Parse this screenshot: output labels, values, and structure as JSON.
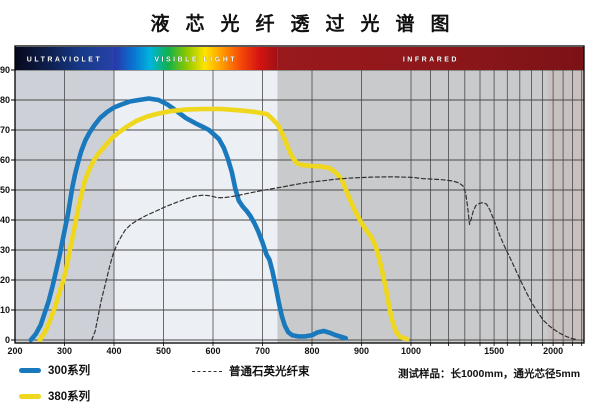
{
  "title": "液芯光纤透过光谱图",
  "colors": {
    "series_300": "#1a79bd",
    "series_380": "#eed71c",
    "series_quartz": "#333333",
    "grid": "#4a4a4a",
    "border": "#000000",
    "band_text": "#ffffff",
    "axis_text": "#111111",
    "right_tint": "#c79b90"
  },
  "spectrum_band": {
    "regions": [
      {
        "label": "ULTRAVIOLET",
        "from_nm": 200,
        "to_nm": 400,
        "band_stops": [
          "#07081c",
          "#0e1f4e",
          "#173a8a",
          "#2742a8"
        ],
        "plot_color": "#cdd1d7"
      },
      {
        "label": "VISIBLE LIGHT",
        "from_nm": 400,
        "to_nm": 730,
        "band_stops": [
          "#2b35a8",
          "#0b6fd0",
          "#00b5dd",
          "#12b14b",
          "#8cc800",
          "#ffe400",
          "#ff9700",
          "#f54708",
          "#d51410",
          "#a01015"
        ],
        "plot_color": "#eceff4"
      },
      {
        "label": "INFRARED",
        "from_nm": 730,
        "to_nm": 2330,
        "band_stops": [
          "#9a191d",
          "#8e171b",
          "#7c1216"
        ],
        "plot_color": "#c9cacb"
      }
    ]
  },
  "chart_data": {
    "type": "line",
    "title": "液芯光纤透过光谱图",
    "x_axis": {
      "ticks": [
        200,
        300,
        400,
        500,
        600,
        700,
        800,
        900,
        1000,
        1500,
        2000
      ],
      "gridline_step_nm": 100,
      "min_nm": 200,
      "max_nm": 2330,
      "scale": "linear 200-1000 nm, logarithmic beyond 1000 nm"
    },
    "y_axis": {
      "ticks": [
        0,
        10,
        20,
        30,
        40,
        50,
        60,
        70,
        80,
        90
      ],
      "min": 0,
      "max": 95
    },
    "grid": true,
    "series": [
      {
        "name": "300系列",
        "color": "#1a79bd",
        "style": "solid",
        "width": 4.6,
        "points": [
          [
            232,
            0
          ],
          [
            242,
            2
          ],
          [
            252,
            5
          ],
          [
            260,
            9
          ],
          [
            268,
            13
          ],
          [
            276,
            18
          ],
          [
            283,
            23
          ],
          [
            290,
            28
          ],
          [
            296,
            33
          ],
          [
            302,
            38
          ],
          [
            307,
            42
          ],
          [
            312,
            47
          ],
          [
            316,
            51
          ],
          [
            321,
            55
          ],
          [
            327,
            59
          ],
          [
            334,
            63
          ],
          [
            342,
            66.5
          ],
          [
            350,
            69
          ],
          [
            360,
            71.5
          ],
          [
            372,
            74
          ],
          [
            386,
            76
          ],
          [
            400,
            77.5
          ],
          [
            415,
            78.5
          ],
          [
            432,
            79.5
          ],
          [
            450,
            80
          ],
          [
            470,
            80.5
          ],
          [
            490,
            80
          ],
          [
            508,
            78.5
          ],
          [
            525,
            76.5
          ],
          [
            545,
            74
          ],
          [
            565,
            72.2
          ],
          [
            580,
            71
          ],
          [
            592,
            70
          ],
          [
            602,
            68.5
          ],
          [
            612,
            67
          ],
          [
            622,
            64
          ],
          [
            630,
            60.5
          ],
          [
            638,
            56
          ],
          [
            645,
            50.5
          ],
          [
            652,
            46.5
          ],
          [
            660,
            44.5
          ],
          [
            668,
            43
          ],
          [
            676,
            41.2
          ],
          [
            684,
            38.8
          ],
          [
            692,
            36
          ],
          [
            700,
            32.5
          ],
          [
            708,
            28.5
          ],
          [
            714,
            26.8
          ],
          [
            720,
            23
          ],
          [
            727,
            17.5
          ],
          [
            733,
            12.5
          ],
          [
            739,
            8
          ],
          [
            745,
            4.8
          ],
          [
            752,
            2.6
          ],
          [
            760,
            1.6
          ],
          [
            772,
            1.2
          ],
          [
            786,
            1.2
          ],
          [
            800,
            1.6
          ],
          [
            812,
            2.6
          ],
          [
            824,
            3
          ],
          [
            836,
            2.4
          ],
          [
            848,
            1.6
          ],
          [
            860,
            1
          ],
          [
            868,
            0.6
          ]
        ]
      },
      {
        "name": "380系列",
        "color": "#eed71c",
        "style": "solid",
        "width": 4.6,
        "points": [
          [
            250,
            0
          ],
          [
            262,
            3
          ],
          [
            272,
            7
          ],
          [
            281,
            11
          ],
          [
            290,
            16
          ],
          [
            298,
            20
          ],
          [
            305,
            25
          ],
          [
            311,
            30
          ],
          [
            316,
            34
          ],
          [
            322,
            39
          ],
          [
            329,
            45
          ],
          [
            335,
            49
          ],
          [
            341,
            53
          ],
          [
            349,
            56.5
          ],
          [
            358,
            59.5
          ],
          [
            368,
            62
          ],
          [
            381,
            64.5
          ],
          [
            394,
            67
          ],
          [
            408,
            69
          ],
          [
            425,
            71
          ],
          [
            445,
            73
          ],
          [
            467,
            74.5
          ],
          [
            490,
            75.5
          ],
          [
            515,
            76.3
          ],
          [
            545,
            76.8
          ],
          [
            580,
            77
          ],
          [
            615,
            77
          ],
          [
            650,
            76.6
          ],
          [
            685,
            76
          ],
          [
            709,
            75.3
          ],
          [
            721,
            73.5
          ],
          [
            732,
            71.5
          ],
          [
            742,
            68
          ],
          [
            752,
            64
          ],
          [
            760,
            61
          ],
          [
            769,
            59
          ],
          [
            780,
            58.3
          ],
          [
            800,
            58
          ],
          [
            820,
            57.8
          ],
          [
            836,
            57.3
          ],
          [
            848,
            55.8
          ],
          [
            860,
            53.5
          ],
          [
            870,
            49.5
          ],
          [
            880,
            45.5
          ],
          [
            890,
            42
          ],
          [
            900,
            39
          ],
          [
            910,
            36.5
          ],
          [
            920,
            34.3
          ],
          [
            928,
            31.5
          ],
          [
            936,
            27
          ],
          [
            943,
            22
          ],
          [
            950,
            16.5
          ],
          [
            956,
            11
          ],
          [
            962,
            6.5
          ],
          [
            969,
            3
          ],
          [
            978,
            1
          ],
          [
            992,
            0.3
          ]
        ]
      },
      {
        "name": "普通石英光纤束",
        "color": "#333333",
        "style": "dashed",
        "width": 1.2,
        "points": [
          [
            355,
            0
          ],
          [
            362,
            3
          ],
          [
            368,
            8
          ],
          [
            374,
            13
          ],
          [
            380,
            17
          ],
          [
            386,
            21
          ],
          [
            392,
            25
          ],
          [
            398,
            28.5
          ],
          [
            405,
            31.5
          ],
          [
            413,
            34
          ],
          [
            422,
            36.5
          ],
          [
            434,
            38.5
          ],
          [
            448,
            40
          ],
          [
            465,
            41.5
          ],
          [
            485,
            43
          ],
          [
            505,
            44.5
          ],
          [
            525,
            45.8
          ],
          [
            545,
            47
          ],
          [
            565,
            48
          ],
          [
            582,
            48.3
          ],
          [
            596,
            48
          ],
          [
            610,
            47.4
          ],
          [
            625,
            47.5
          ],
          [
            645,
            48
          ],
          [
            668,
            48.8
          ],
          [
            692,
            49.6
          ],
          [
            715,
            50.3
          ],
          [
            740,
            51
          ],
          [
            765,
            51.8
          ],
          [
            790,
            52.5
          ],
          [
            818,
            53
          ],
          [
            848,
            53.6
          ],
          [
            880,
            54
          ],
          [
            920,
            54.3
          ],
          [
            965,
            54.4
          ],
          [
            1010,
            54.2
          ],
          [
            1060,
            53.8
          ],
          [
            1115,
            53.6
          ],
          [
            1170,
            53.4
          ],
          [
            1225,
            53
          ],
          [
            1262,
            52.4
          ],
          [
            1288,
            51.4
          ],
          [
            1305,
            49
          ],
          [
            1318,
            44.5
          ],
          [
            1330,
            38.5
          ],
          [
            1342,
            40.5
          ],
          [
            1355,
            43
          ],
          [
            1372,
            44.8
          ],
          [
            1395,
            45.5
          ],
          [
            1420,
            45.8
          ],
          [
            1445,
            45.3
          ],
          [
            1468,
            43.5
          ],
          [
            1490,
            41
          ],
          [
            1515,
            38
          ],
          [
            1545,
            34.5
          ],
          [
            1580,
            31
          ],
          [
            1620,
            27.5
          ],
          [
            1665,
            23.5
          ],
          [
            1710,
            19.5
          ],
          [
            1760,
            15.5
          ],
          [
            1810,
            12
          ],
          [
            1860,
            9
          ],
          [
            1910,
            6.5
          ],
          [
            1960,
            4.8
          ],
          [
            2010,
            3.5
          ],
          [
            2070,
            2.2
          ],
          [
            2130,
            1.2
          ],
          [
            2190,
            0.5
          ],
          [
            2250,
            0.1
          ]
        ]
      }
    ]
  },
  "legend": {
    "items": [
      {
        "label": "300系列",
        "swatch": "solid",
        "color": "#1a79bd"
      },
      {
        "label": "380系列",
        "swatch": "solid",
        "color": "#eed71c"
      },
      {
        "label": "普通石英光纤束",
        "swatch": "dashed",
        "color": "#333333"
      }
    ],
    "note": "测试样品：长1000mm，通光芯径5mm"
  }
}
